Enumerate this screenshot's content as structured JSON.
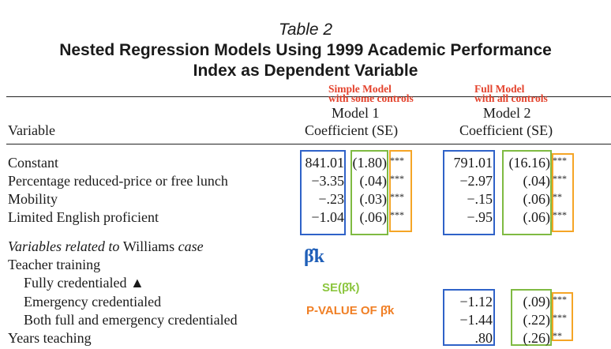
{
  "header": {
    "table_number": "Table 2",
    "title_line1": "Nested Regression Models Using 1999 Academic Performance",
    "title_line2": "Index as Dependent Variable"
  },
  "annotations": {
    "model1_note_line1": "Simple Model",
    "model1_note_line2": "with some controls",
    "model2_note_line1": "Full Model",
    "model2_note_line2": "with all controls",
    "beta_k": "β̂k",
    "se_beta": "SE(β̂k)",
    "p_value": "P-VALUE OF β̂k"
  },
  "columns": {
    "variable": "Variable",
    "model1": "Model 1",
    "model2": "Model 2",
    "coef_se": "Coefficient (SE)"
  },
  "rows": {
    "constant": {
      "label": "Constant",
      "m1_coef": "841.01",
      "m1_se": "(1.80)",
      "m1_stars": "***",
      "m2_coef": "791.01",
      "m2_se": "(16.16)",
      "m2_stars": "***"
    },
    "lunch": {
      "label": "Percentage reduced-price or free lunch",
      "m1_coef": "−3.35",
      "m1_se": "(.04)",
      "m1_stars": "***",
      "m2_coef": "−2.97",
      "m2_se": "(.04)",
      "m2_stars": "***"
    },
    "mobility": {
      "label": "Mobility",
      "m1_coef": "−.23",
      "m1_se": "(.03)",
      "m1_stars": "***",
      "m2_coef": "−.15",
      "m2_se": "(.06)",
      "m2_stars": "**"
    },
    "english": {
      "label": "Limited English proficient",
      "m1_coef": "−1.04",
      "m1_se": "(.06)",
      "m1_stars": "***",
      "m2_coef": "−.95",
      "m2_se": "(.06)",
      "m2_stars": "***"
    },
    "williams_pre": "Variables related to ",
    "williams_mid": "Williams",
    "williams_post": " case",
    "teacher_training": "Teacher training",
    "fully": "Fully credentialed ▲",
    "emergency": {
      "label": "Emergency credentialed",
      "m2_coef": "−1.12",
      "m2_se": "(.09)",
      "m2_stars": "***"
    },
    "both": {
      "label": "Both full and emergency credentialed",
      "m2_coef": "−1.44",
      "m2_se": "(.22)",
      "m2_stars": "***"
    },
    "years": {
      "label": "Years teaching",
      "m2_coef": ".80",
      "m2_se": "(.26)",
      "m2_stars": "**"
    }
  }
}
